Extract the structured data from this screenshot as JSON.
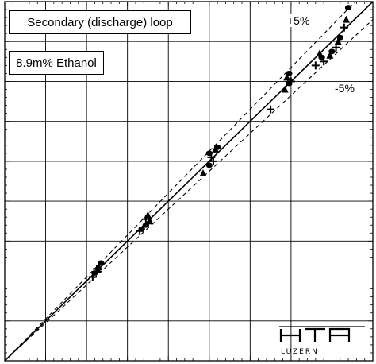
{
  "chart_data": {
    "type": "scatter",
    "title": "Secondary (discharge) loop",
    "subtitle": "8.9m% Ethanol",
    "xlabel": "",
    "ylabel": "",
    "xlim": [
      0,
      9
    ],
    "ylim": [
      0,
      9
    ],
    "grid": true,
    "reference_lines": [
      {
        "label": "",
        "slope": 1.0,
        "style": "solid"
      },
      {
        "label": "+5%",
        "slope": 1.05,
        "style": "dashed"
      },
      {
        "label": "-5%",
        "slope": 0.95,
        "style": "dashed"
      }
    ],
    "series": [
      {
        "points": [
          [
            2.2,
            2.2
          ],
          [
            2.25,
            2.3
          ],
          [
            2.3,
            2.35
          ],
          [
            2.35,
            2.45
          ],
          [
            2.15,
            2.1
          ],
          [
            2.28,
            2.28
          ],
          [
            3.35,
            3.3
          ],
          [
            3.45,
            3.55
          ],
          [
            3.5,
            3.65
          ],
          [
            3.45,
            3.4
          ],
          [
            3.3,
            3.25
          ],
          [
            3.55,
            3.5
          ],
          [
            5.0,
            4.9
          ],
          [
            5.05,
            5.1
          ],
          [
            5.15,
            5.3
          ],
          [
            5.2,
            5.35
          ],
          [
            5.1,
            5.0
          ],
          [
            4.85,
            4.7
          ],
          [
            5.0,
            5.2
          ],
          [
            6.5,
            6.3
          ],
          [
            6.85,
            6.8
          ],
          [
            6.95,
            6.95
          ],
          [
            7.0,
            7.0
          ],
          [
            6.9,
            7.1
          ],
          [
            6.95,
            7.2
          ],
          [
            7.6,
            7.4
          ],
          [
            7.7,
            7.7
          ],
          [
            7.75,
            7.6
          ],
          [
            7.8,
            7.5
          ],
          [
            7.95,
            7.65
          ],
          [
            8.0,
            7.75
          ],
          [
            8.1,
            7.85
          ],
          [
            8.15,
            8.0
          ],
          [
            8.2,
            8.1
          ],
          [
            8.3,
            8.35
          ],
          [
            8.35,
            8.55
          ],
          [
            8.4,
            8.85
          ]
        ]
      }
    ]
  },
  "labels": {
    "plus_band": "+5%",
    "minus_band": "-5%",
    "logo_text": "HTA",
    "logo_subtext": "LUZERN"
  }
}
